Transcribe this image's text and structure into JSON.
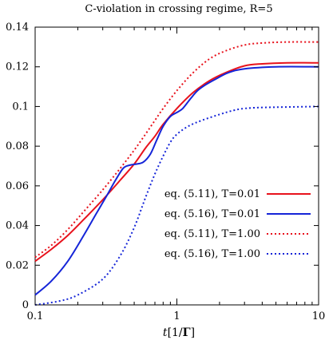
{
  "chart_data": {
    "type": "line",
    "title": "C-violation in crossing regime, R=5",
    "xlabel_italic": "t",
    "xlabel_rest": "[1/",
    "xlabel_bold": "Γ",
    "xlabel_close": "]",
    "ylabel": "",
    "x_scale": "log",
    "xlim": [
      0.1,
      10
    ],
    "ylim": [
      0,
      0.14
    ],
    "x_ticks": [
      {
        "value": 0.1,
        "label": "0.1"
      },
      {
        "value": 1,
        "label": "1"
      },
      {
        "value": 10,
        "label": "10"
      }
    ],
    "y_ticks": [
      {
        "value": 0,
        "label": "0"
      },
      {
        "value": 0.02,
        "label": "0.02"
      },
      {
        "value": 0.04,
        "label": "0.04"
      },
      {
        "value": 0.06,
        "label": "0.06"
      },
      {
        "value": 0.08,
        "label": "0.08"
      },
      {
        "value": 0.1,
        "label": "0.1"
      },
      {
        "value": 0.12,
        "label": "0.12"
      },
      {
        "value": 0.14,
        "label": "0.14"
      }
    ],
    "legend_position": "bottom-right",
    "grid": false,
    "series": [
      {
        "name": "eq. (5.11), T=0.01",
        "color": "#e8121c",
        "style": "solid",
        "points": [
          [
            0.1,
            0.022
          ],
          [
            0.13,
            0.028
          ],
          [
            0.17,
            0.035
          ],
          [
            0.22,
            0.043
          ],
          [
            0.3,
            0.053
          ],
          [
            0.4,
            0.063
          ],
          [
            0.5,
            0.071
          ],
          [
            0.6,
            0.079
          ],
          [
            0.7,
            0.085
          ],
          [
            0.8,
            0.091
          ],
          [
            1.0,
            0.099
          ],
          [
            1.3,
            0.107
          ],
          [
            1.7,
            0.113
          ],
          [
            2.2,
            0.117
          ],
          [
            3.0,
            0.1205
          ],
          [
            4.0,
            0.1215
          ],
          [
            6.0,
            0.122
          ],
          [
            10.0,
            0.122
          ]
        ]
      },
      {
        "name": "eq. (5.16), T=0.01",
        "color": "#1525d8",
        "style": "solid",
        "points": [
          [
            0.1,
            0.005
          ],
          [
            0.13,
            0.012
          ],
          [
            0.17,
            0.022
          ],
          [
            0.22,
            0.035
          ],
          [
            0.27,
            0.046
          ],
          [
            0.32,
            0.055
          ],
          [
            0.37,
            0.063
          ],
          [
            0.42,
            0.069
          ],
          [
            0.47,
            0.0705
          ],
          [
            0.52,
            0.071
          ],
          [
            0.58,
            0.072
          ],
          [
            0.65,
            0.076
          ],
          [
            0.72,
            0.083
          ],
          [
            0.8,
            0.09
          ],
          [
            0.9,
            0.095
          ],
          [
            1.0,
            0.097
          ],
          [
            1.1,
            0.099
          ],
          [
            1.25,
            0.104
          ],
          [
            1.4,
            0.108
          ],
          [
            1.6,
            0.111
          ],
          [
            1.9,
            0.114
          ],
          [
            2.3,
            0.117
          ],
          [
            3.0,
            0.119
          ],
          [
            5.0,
            0.12
          ],
          [
            10.0,
            0.12
          ]
        ]
      },
      {
        "name": "eq. (5.11), T=1.00",
        "color": "#e8121c",
        "style": "dotted",
        "points": [
          [
            0.1,
            0.024
          ],
          [
            0.13,
            0.03
          ],
          [
            0.17,
            0.038
          ],
          [
            0.22,
            0.047
          ],
          [
            0.3,
            0.058
          ],
          [
            0.4,
            0.069
          ],
          [
            0.5,
            0.078
          ],
          [
            0.6,
            0.086
          ],
          [
            0.7,
            0.093
          ],
          [
            0.8,
            0.099
          ],
          [
            1.0,
            0.108
          ],
          [
            1.3,
            0.117
          ],
          [
            1.7,
            0.124
          ],
          [
            2.2,
            0.128
          ],
          [
            3.0,
            0.131
          ],
          [
            4.0,
            0.132
          ],
          [
            6.0,
            0.1325
          ],
          [
            10.0,
            0.1325
          ]
        ]
      },
      {
        "name": "eq. (5.16), T=1.00",
        "color": "#1525d8",
        "style": "dotted",
        "points": [
          [
            0.1,
            0.0
          ],
          [
            0.15,
            0.002
          ],
          [
            0.2,
            0.005
          ],
          [
            0.3,
            0.013
          ],
          [
            0.4,
            0.025
          ],
          [
            0.5,
            0.039
          ],
          [
            0.6,
            0.054
          ],
          [
            0.7,
            0.066
          ],
          [
            0.8,
            0.075
          ],
          [
            0.9,
            0.082
          ],
          [
            1.0,
            0.086
          ],
          [
            1.2,
            0.09
          ],
          [
            1.5,
            0.093
          ],
          [
            2.0,
            0.096
          ],
          [
            2.5,
            0.098
          ],
          [
            3.0,
            0.099
          ],
          [
            4.0,
            0.0995
          ],
          [
            10.0,
            0.1
          ]
        ]
      }
    ]
  }
}
